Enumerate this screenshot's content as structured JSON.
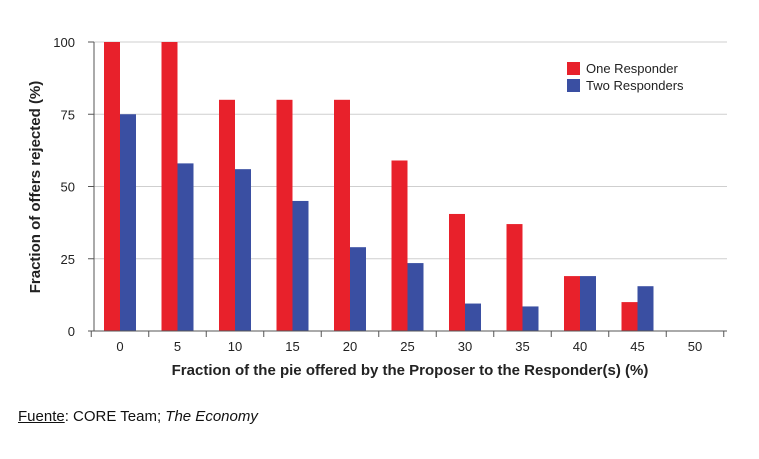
{
  "chart_data": {
    "type": "bar",
    "xlabel": "Fraction of the pie offered by the Proposer to the Responder(s) (%)",
    "ylabel": "Fraction of offers rejected (%)",
    "categories": [
      "0",
      "5",
      "10",
      "15",
      "20",
      "25",
      "30",
      "35",
      "40",
      "45",
      "50"
    ],
    "yticks": [
      "0",
      "25",
      "50",
      "75",
      "100"
    ],
    "ylim": [
      0,
      100
    ],
    "grid": true,
    "legend_position": "top-right",
    "series": [
      {
        "name": "One Responder",
        "color": "#e8212b",
        "values": [
          100,
          100,
          80,
          80,
          80,
          59,
          40.5,
          37,
          19,
          10,
          0
        ]
      },
      {
        "name": "Two Responders",
        "color": "#3a4fa2",
        "values": [
          75,
          58,
          56,
          45,
          29,
          23.5,
          9.5,
          8.5,
          19,
          15.5,
          0
        ]
      }
    ]
  },
  "source": {
    "label": "Fuente",
    "separator": ": ",
    "text": "CORE Team; ",
    "italic": "The Economy"
  }
}
